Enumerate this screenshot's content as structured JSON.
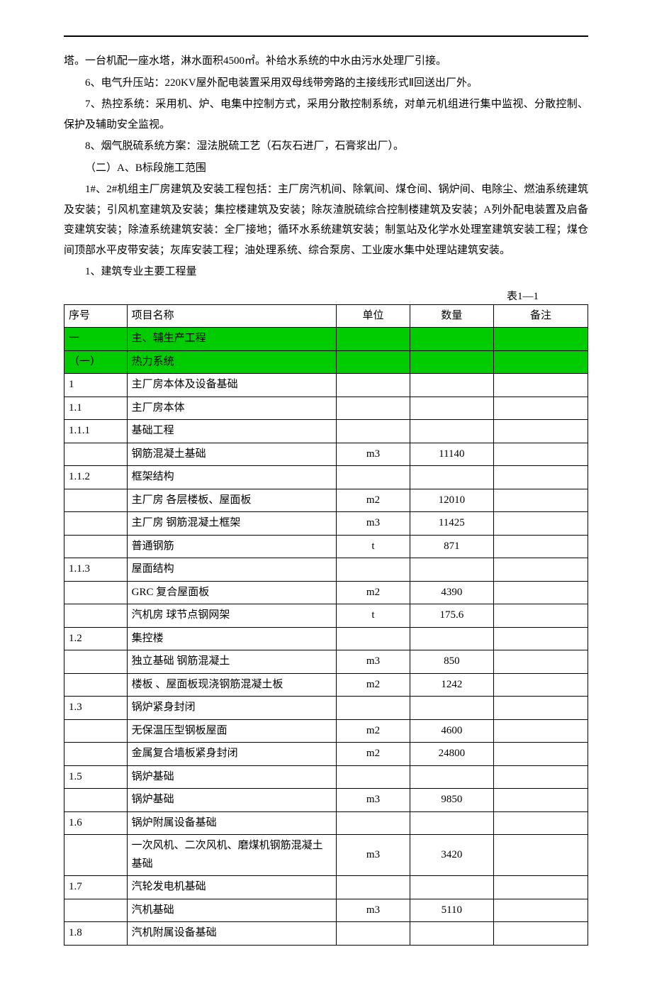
{
  "body_text": {
    "p1": "塔。一台机配一座水塔，淋水面积4500㎡。补给水系统的中水由污水处理厂引接。",
    "p2": "6、电气升压站：220KV屋外配电装置采用双母线带旁路的主接线形式Ⅱ回送出厂外。",
    "p3": "7、热控系统：采用机、炉、电集中控制方式，采用分散控制系统，对单元机组进行集中监视、分散控制、保护及辅助安全监视。",
    "p4": "8、烟气脱硫系统方案：湿法脱硫工艺（石灰石进厂，石膏浆出厂）。",
    "p5": "（二）A、B标段施工范围",
    "p6": "1#、2#机组主厂房建筑及安装工程包括：主厂房汽机间、除氧间、煤仓间、锅炉间、电除尘、燃油系统建筑及安装；引风机室建筑及安装；集控楼建筑及安装；除灰渣脱硫综合控制楼建筑及安装；A列外配电装置及启备变建筑安装；除渣系统建筑安装：全厂接地；循环水系统建筑安装；制氢站及化学水处理室建筑安装工程；煤仓间顶部水平皮带安装；灰库安装工程；油处理系统、综合泵房、工业废水集中处理站建筑安装。",
    "p7": "1、建筑专业主要工程量"
  },
  "table_label": "表1—1",
  "table": {
    "headers": {
      "seq": "序号",
      "name": "项目名称",
      "unit": "单位",
      "qty": "数量",
      "note": "备注"
    },
    "highlight_color": "#00cc00",
    "rows": [
      {
        "seq": "一",
        "name": "主、辅生产工程",
        "unit": "",
        "qty": "",
        "note": "",
        "highlight": true
      },
      {
        "seq": "（一）",
        "name": "热力系统",
        "unit": "",
        "qty": "",
        "note": "",
        "highlight": true
      },
      {
        "seq": "1",
        "name": "主厂房本体及设备基础",
        "unit": "",
        "qty": "",
        "note": ""
      },
      {
        "seq": "1.1",
        "name": "主厂房本体",
        "unit": "",
        "qty": "",
        "note": ""
      },
      {
        "seq": "1.1.1",
        "name": "基础工程",
        "unit": "",
        "qty": "",
        "note": ""
      },
      {
        "seq": "",
        "name": "钢筋混凝土基础",
        "unit": "m3",
        "qty": "11140",
        "note": ""
      },
      {
        "seq": "1.1.2",
        "name": "框架结构",
        "unit": "",
        "qty": "",
        "note": ""
      },
      {
        "seq": "",
        "name": "主厂房 各层楼板、屋面板",
        "unit": "m2",
        "qty": "12010",
        "note": ""
      },
      {
        "seq": "",
        "name": "主厂房 钢筋混凝土框架",
        "unit": "m3",
        "qty": "11425",
        "note": ""
      },
      {
        "seq": "",
        "name": "普通钢筋",
        "unit": "t",
        "qty": "871",
        "note": ""
      },
      {
        "seq": "1.1.3",
        "name": "屋面结构",
        "unit": "",
        "qty": "",
        "note": ""
      },
      {
        "seq": "",
        "name": "GRC 复合屋面板",
        "unit": "m2",
        "qty": "4390",
        "note": ""
      },
      {
        "seq": "",
        "name": "汽机房 球节点钢网架",
        "unit": "t",
        "qty": "175.6",
        "note": ""
      },
      {
        "seq": "1.2",
        "name": "集控楼",
        "unit": "",
        "qty": "",
        "note": ""
      },
      {
        "seq": "",
        "name": "独立基础 钢筋混凝土",
        "unit": "m3",
        "qty": "850",
        "note": ""
      },
      {
        "seq": "",
        "name": "楼板 、屋面板现浇钢筋混凝土板",
        "unit": "m2",
        "qty": "1242",
        "note": ""
      },
      {
        "seq": "1.3",
        "name": "锅炉紧身封闭",
        "unit": "",
        "qty": "",
        "note": ""
      },
      {
        "seq": "",
        "name": "无保温压型钢板屋面",
        "unit": "m2",
        "qty": "4600",
        "note": ""
      },
      {
        "seq": "",
        "name": "金属复合墙板紧身封闭",
        "unit": "m2",
        "qty": "24800",
        "note": ""
      },
      {
        "seq": "1.5",
        "name": "锅炉基础",
        "unit": "",
        "qty": "",
        "note": ""
      },
      {
        "seq": "",
        "name": "锅炉基础",
        "unit": "m3",
        "qty": "9850",
        "note": ""
      },
      {
        "seq": "1.6",
        "name": "锅炉附属设备基础",
        "unit": "",
        "qty": "",
        "note": ""
      },
      {
        "seq": "",
        "name": "一次风机、二次风机、磨煤机钢筋混凝土基础",
        "unit": "m3",
        "qty": "3420",
        "note": ""
      },
      {
        "seq": "1.7",
        "name": "汽轮发电机基础",
        "unit": "",
        "qty": "",
        "note": ""
      },
      {
        "seq": "",
        "name": "汽机基础",
        "unit": "m3",
        "qty": "5110",
        "note": ""
      },
      {
        "seq": "1.8",
        "name": "汽机附属设备基础",
        "unit": "",
        "qty": "",
        "note": ""
      }
    ]
  }
}
